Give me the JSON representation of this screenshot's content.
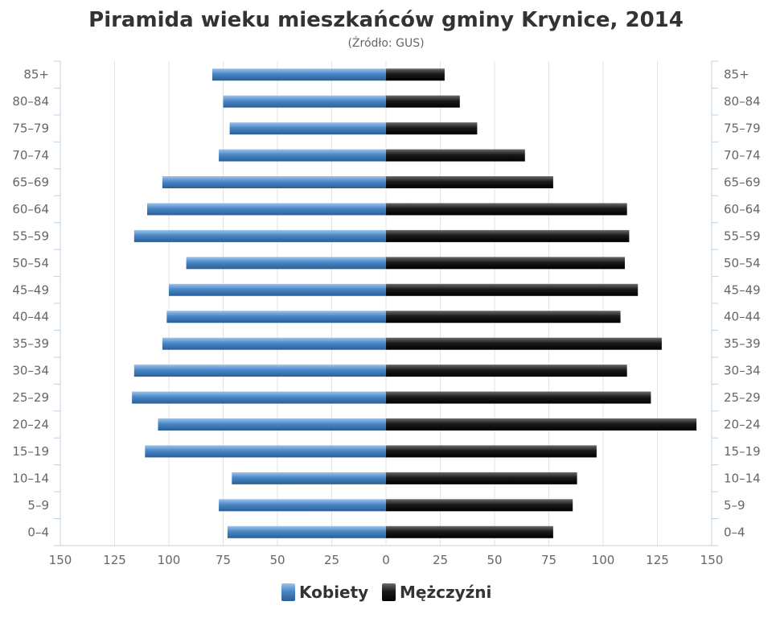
{
  "chart_data": {
    "type": "bar",
    "orientation": "horizontal-pyramid",
    "title": "Piramida wieku mieszkańców gminy Krynice, 2014",
    "subtitle": "(Źródło: GUS)",
    "categories": [
      "85+",
      "80–84",
      "75–79",
      "70–74",
      "65–69",
      "60–64",
      "55–59",
      "50–54",
      "45–49",
      "40–44",
      "35–39",
      "30–34",
      "25–29",
      "20–24",
      "15–19",
      "10–14",
      "5–9",
      "0–4"
    ],
    "series": [
      {
        "name": "Kobiety",
        "side": "left",
        "color": "#4a87c7",
        "values": [
          80,
          75,
          72,
          77,
          103,
          110,
          116,
          92,
          100,
          101,
          103,
          116,
          117,
          105,
          111,
          71,
          77,
          73
        ]
      },
      {
        "name": "Mężczyźni",
        "side": "right",
        "color": "#1a1a1a",
        "values": [
          27,
          34,
          42,
          64,
          77,
          111,
          112,
          110,
          116,
          108,
          127,
          111,
          122,
          143,
          97,
          88,
          86,
          77
        ]
      }
    ],
    "xlim": [
      -150,
      150
    ],
    "xticks": [
      "150",
      "125",
      "100",
      "75",
      "50",
      "25",
      "0",
      "25",
      "50",
      "75",
      "100",
      "125",
      "150"
    ],
    "grid": true,
    "legend": "bottom-center"
  }
}
